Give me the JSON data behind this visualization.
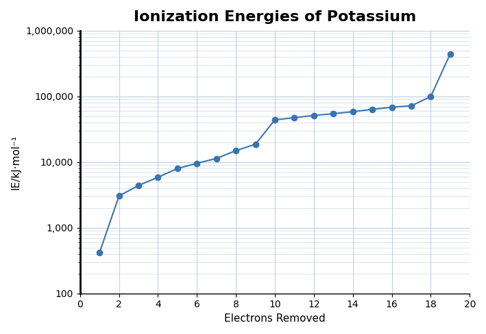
{
  "title": "Ionization Energies of Potassium",
  "xlabel": "Electrons Removed",
  "ylabel": "IE/kJ·mol⁻¹",
  "x": [
    1,
    2,
    3,
    4,
    5,
    6,
    7,
    8,
    9,
    10,
    11,
    12,
    13,
    14,
    15,
    16,
    17,
    18,
    19
  ],
  "y": [
    419,
    3052,
    4411,
    5877,
    7975,
    9590,
    11343,
    14944,
    18672,
    43961,
    47460,
    51300,
    54490,
    58560,
    63410,
    68450,
    71730,
    99710,
    444880
  ],
  "line_color": "#3a74b0",
  "marker_color": "#3a74b0",
  "marker_size": 6,
  "line_width": 1.5,
  "background_color": "#ffffff",
  "plot_bg_color": "#ffffff",
  "grid_color": "#c0cfe0",
  "xlim": [
    0,
    20
  ],
  "ylim_log": [
    100,
    1000000
  ],
  "title_fontsize": 16,
  "label_fontsize": 11,
  "tick_fontsize": 10,
  "title_fontweight": "bold"
}
